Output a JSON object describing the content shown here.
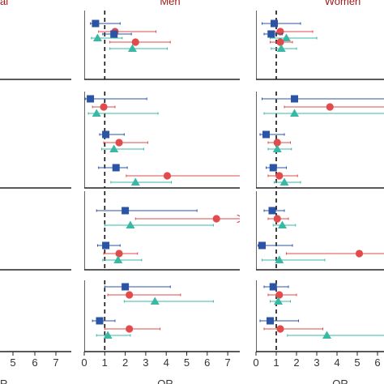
{
  "colors": {
    "title": "#a01c1c",
    "blue": "#2b54a6",
    "red": "#e24b4b",
    "teal": "#39b8a4"
  },
  "chart_data": [
    {
      "type": "scatter",
      "title": "al",
      "xlabel": "R",
      "xticks": [
        "5",
        "6",
        "7"
      ],
      "groups": []
    },
    {
      "type": "scatter",
      "title": "Men",
      "xlabel": "OR",
      "xlim": [
        0,
        7.8
      ],
      "xticks": [
        "0",
        "1",
        "2",
        "3",
        "4",
        "5",
        "6",
        "7"
      ],
      "reference_line": 1,
      "groups": [
        [
          {
            "series": "blue",
            "shape": "square",
            "or": 0.55,
            "lo": 0.3,
            "hi": 1.75
          },
          {
            "series": "red",
            "shape": "circle",
            "or": 1.5,
            "lo": 0.7,
            "hi": 3.5
          },
          {
            "series": "teal",
            "shape": "triangle",
            "or": 0.65,
            "lo": 0.35,
            "hi": 1.85
          }
        ],
        [
          {
            "series": "blue",
            "shape": "square",
            "or": 1.45,
            "lo": 0.9,
            "hi": 2.3
          },
          {
            "series": "red",
            "shape": "circle",
            "or": 2.5,
            "lo": 1.25,
            "hi": 4.2
          },
          {
            "series": "teal",
            "shape": "triangle",
            "or": 2.35,
            "lo": 1.25,
            "hi": 4.05
          }
        ],
        [
          {
            "series": "blue",
            "shape": "square",
            "or": 0.3,
            "lo": 0.05,
            "hi": 3.05
          },
          {
            "series": "red",
            "shape": "circle",
            "or": 0.95,
            "lo": 0.4,
            "hi": 1.5
          },
          {
            "series": "teal",
            "shape": "triangle",
            "or": 0.6,
            "lo": 0.2,
            "hi": 3.6
          }
        ],
        [
          {
            "series": "blue",
            "shape": "square",
            "or": 1.05,
            "lo": 0.75,
            "hi": 1.95
          },
          {
            "series": "red",
            "shape": "circle",
            "or": 1.7,
            "lo": 0.95,
            "hi": 3.1
          },
          {
            "series": "teal",
            "shape": "triangle",
            "or": 1.45,
            "lo": 0.85,
            "hi": 2.9
          }
        ],
        [
          {
            "series": "blue",
            "shape": "square",
            "or": 1.55,
            "lo": 0.7,
            "hi": 2.1
          },
          {
            "series": "red",
            "shape": "circle",
            "or": 4.05,
            "lo": 2.05,
            "hi": 7.7
          },
          {
            "series": "teal",
            "shape": "triangle",
            "or": 2.5,
            "lo": 1.3,
            "hi": 4.25
          }
        ],
        [
          {
            "series": "blue",
            "shape": "square",
            "or": 2.0,
            "lo": 0.6,
            "hi": 5.5
          },
          {
            "series": "red",
            "shape": "circle",
            "or": 6.45,
            "lo": 2.5,
            "hi": 7.8,
            "arrow": true
          },
          {
            "series": "teal",
            "shape": "triangle",
            "or": 2.25,
            "lo": 1.0,
            "hi": 6.3
          }
        ],
        [
          {
            "series": "blue",
            "shape": "square",
            "or": 1.05,
            "lo": 0.65,
            "hi": 1.75
          },
          {
            "series": "red",
            "shape": "circle",
            "or": 1.7,
            "lo": 0.95,
            "hi": 2.6
          },
          {
            "series": "teal",
            "shape": "triangle",
            "or": 1.65,
            "lo": 0.9,
            "hi": 2.8
          }
        ],
        [
          {
            "series": "blue",
            "shape": "square",
            "or": 2.0,
            "lo": 1.0,
            "hi": 4.2
          },
          {
            "series": "red",
            "shape": "circle",
            "or": 2.2,
            "lo": 1.15,
            "hi": 4.7
          },
          {
            "series": "teal",
            "shape": "triangle",
            "or": 3.45,
            "lo": 1.95,
            "hi": 6.3
          }
        ],
        [
          {
            "series": "blue",
            "shape": "square",
            "or": 0.75,
            "lo": 0.4,
            "hi": 1.5
          },
          {
            "series": "red",
            "shape": "circle",
            "or": 2.2,
            "lo": 1.0,
            "hi": 3.7
          },
          {
            "series": "teal",
            "shape": "triangle",
            "or": 1.15,
            "lo": 0.6,
            "hi": 2.25
          }
        ]
      ]
    },
    {
      "type": "scatter",
      "title": "Women",
      "xlabel": "OR",
      "xlim": [
        0,
        6.7
      ],
      "xticks": [
        "0",
        "1",
        "2",
        "3",
        "4",
        "5",
        "6"
      ],
      "reference_line": 1,
      "groups": [
        [
          {
            "series": "blue",
            "shape": "square",
            "or": 0.9,
            "lo": 0.3,
            "hi": 2.2
          },
          {
            "series": "red",
            "shape": "circle",
            "or": 1.2,
            "lo": 0.6,
            "hi": 2.8
          },
          {
            "series": "teal",
            "shape": "triangle",
            "or": 1.5,
            "lo": 0.7,
            "hi": 3.0
          }
        ],
        [
          {
            "series": "blue",
            "shape": "square",
            "or": 0.75,
            "lo": 0.4,
            "hi": 1.3
          },
          {
            "series": "red",
            "shape": "circle",
            "or": 1.2,
            "lo": 0.7,
            "hi": 1.8
          },
          {
            "series": "teal",
            "shape": "triangle",
            "or": 1.25,
            "lo": 0.75,
            "hi": 2.0
          }
        ],
        [
          {
            "series": "blue",
            "shape": "square",
            "or": 1.9,
            "lo": 0.3,
            "hi": 6.5
          },
          {
            "series": "red",
            "shape": "circle",
            "or": 3.65,
            "lo": 1.4,
            "hi": 6.6
          },
          {
            "series": "teal",
            "shape": "triangle",
            "or": 1.9,
            "lo": 0.4,
            "hi": 6.6
          }
        ],
        [
          {
            "series": "blue",
            "shape": "square",
            "or": 0.5,
            "lo": 0.2,
            "hi": 1.4
          },
          {
            "series": "red",
            "shape": "circle",
            "or": 1.05,
            "lo": 0.6,
            "hi": 1.7
          },
          {
            "series": "teal",
            "shape": "triangle",
            "or": 1.05,
            "lo": 0.6,
            "hi": 1.75
          }
        ],
        [
          {
            "series": "blue",
            "shape": "square",
            "or": 0.85,
            "lo": 0.5,
            "hi": 1.5
          },
          {
            "series": "red",
            "shape": "circle",
            "or": 1.15,
            "lo": 0.6,
            "hi": 2.05
          },
          {
            "series": "teal",
            "shape": "triangle",
            "or": 1.4,
            "lo": 0.9,
            "hi": 2.2
          }
        ],
        [
          {
            "series": "blue",
            "shape": "square",
            "or": 0.8,
            "lo": 0.4,
            "hi": 1.4
          },
          {
            "series": "red",
            "shape": "circle",
            "or": 1.05,
            "lo": 0.6,
            "hi": 1.6
          },
          {
            "series": "teal",
            "shape": "triangle",
            "or": 1.3,
            "lo": 0.85,
            "hi": 1.95
          }
        ],
        [
          {
            "series": "blue",
            "shape": "square",
            "or": 0.3,
            "lo": 0.1,
            "hi": 1.8
          },
          {
            "series": "red",
            "shape": "circle",
            "or": 5.1,
            "lo": 1.5,
            "hi": 6.7
          },
          {
            "series": "teal",
            "shape": "triangle",
            "or": 1.15,
            "lo": 0.3,
            "hi": 3.4
          }
        ],
        [
          {
            "series": "blue",
            "shape": "square",
            "or": 0.85,
            "lo": 0.4,
            "hi": 1.6
          },
          {
            "series": "red",
            "shape": "circle",
            "or": 1.15,
            "lo": 0.6,
            "hi": 2.0
          },
          {
            "series": "teal",
            "shape": "triangle",
            "or": 1.1,
            "lo": 0.7,
            "hi": 1.7
          }
        ],
        [
          {
            "series": "blue",
            "shape": "square",
            "or": 0.7,
            "lo": 0.2,
            "hi": 2.1
          },
          {
            "series": "red",
            "shape": "circle",
            "or": 1.2,
            "lo": 0.4,
            "hi": 3.3
          },
          {
            "series": "teal",
            "shape": "triangle",
            "or": 3.5,
            "lo": 1.55,
            "hi": 6.7
          }
        ]
      ]
    }
  ]
}
